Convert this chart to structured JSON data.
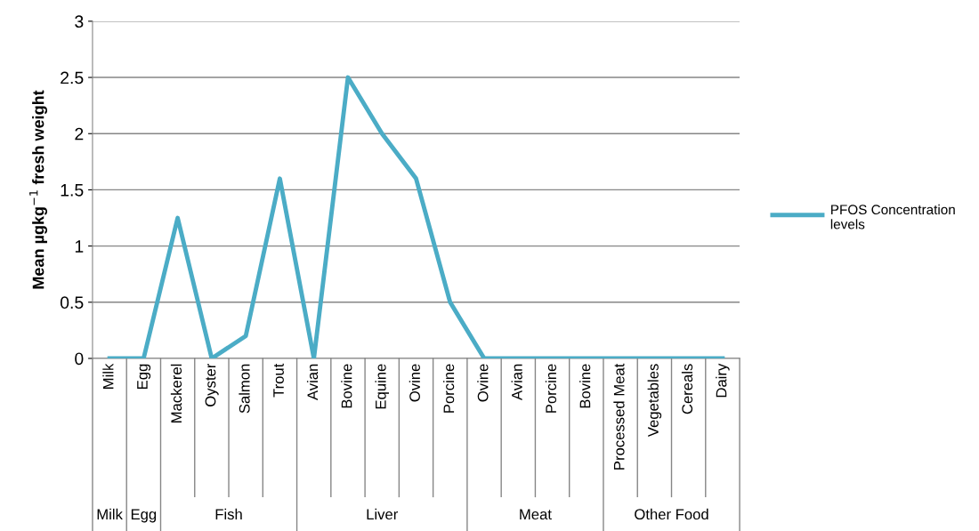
{
  "chart_data": {
    "type": "line",
    "ylabel": "Mean µgkg$^{−1}$ fresh weight",
    "categories": [
      "Milk",
      "Egg",
      "Mackerel",
      "Oyster",
      "Salmon",
      "Trout",
      "Avian",
      "Bovine",
      "Equine",
      "Ovine",
      "Porcine",
      "Ovine",
      "Avian",
      "Porcine",
      "Bovine",
      "Processed Meat",
      "Vegetables",
      "Cereals",
      "Dairy"
    ],
    "series": [
      {
        "name": "PFOS Concentration levels",
        "color": "#4bacc6",
        "values": [
          0,
          0,
          1.25,
          0,
          0.2,
          1.6,
          0,
          2.5,
          2.0,
          1.6,
          0.5,
          0,
          0,
          0,
          0,
          0,
          0,
          0,
          0
        ]
      }
    ],
    "ylim": [
      0,
      3
    ],
    "yticks": [
      0,
      {
        "value": 0.5,
        "label": "0.5"
      },
      1,
      {
        "value": 1.5,
        "label": "1.5"
      },
      2,
      {
        "value": 2.5,
        "label": "2.5"
      },
      3
    ],
    "grid": "y",
    "legend": "right",
    "marker": "none",
    "line_style": "solid",
    "annotations": [
      "Milk",
      "Egg",
      "Fish",
      "Liver",
      "Meat",
      "Other Food"
    ]
  }
}
